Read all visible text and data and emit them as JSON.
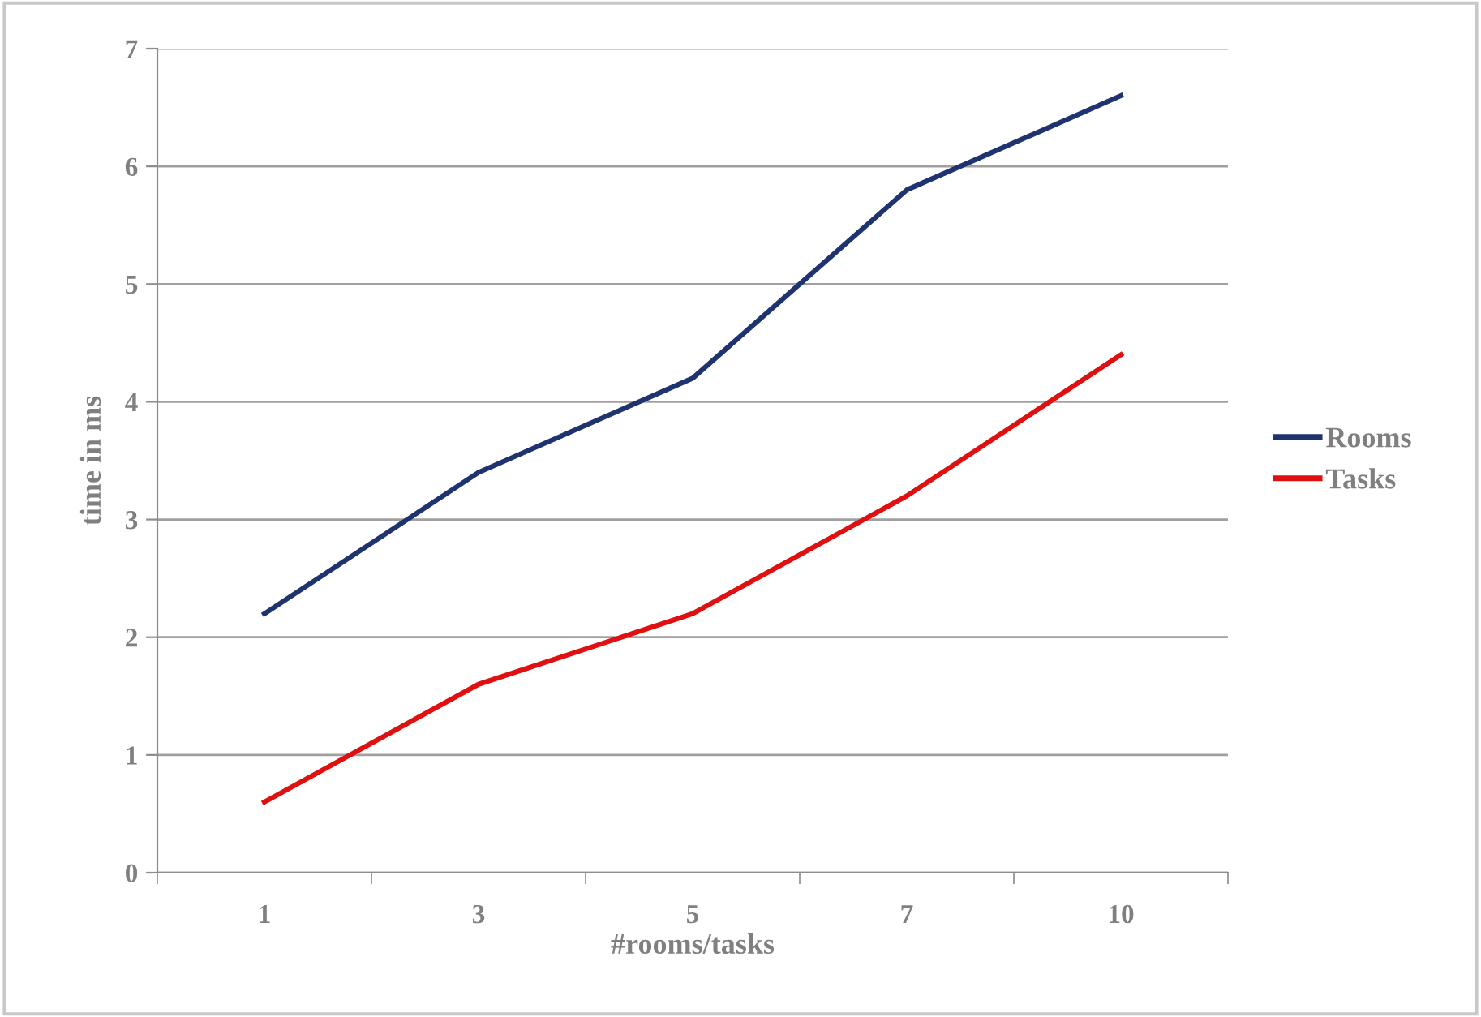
{
  "chart_data": {
    "type": "line",
    "xlabel": "#rooms/tasks",
    "ylabel": "time in ms",
    "categories": [
      "1",
      "3",
      "5",
      "7",
      "10"
    ],
    "series": [
      {
        "name": "Rooms",
        "color": "#1f3370",
        "values": [
          2.2,
          3.4,
          4.2,
          5.8,
          6.6
        ]
      },
      {
        "name": "Tasks",
        "color": "#e01010",
        "values": [
          0.6,
          1.6,
          2.2,
          3.2,
          4.4
        ]
      }
    ],
    "ylim": [
      0,
      7
    ],
    "yticks": [
      0,
      1,
      2,
      3,
      4,
      5,
      6,
      7
    ],
    "grid": "y",
    "legend": "right",
    "marker": "none",
    "line_style": "solid"
  }
}
